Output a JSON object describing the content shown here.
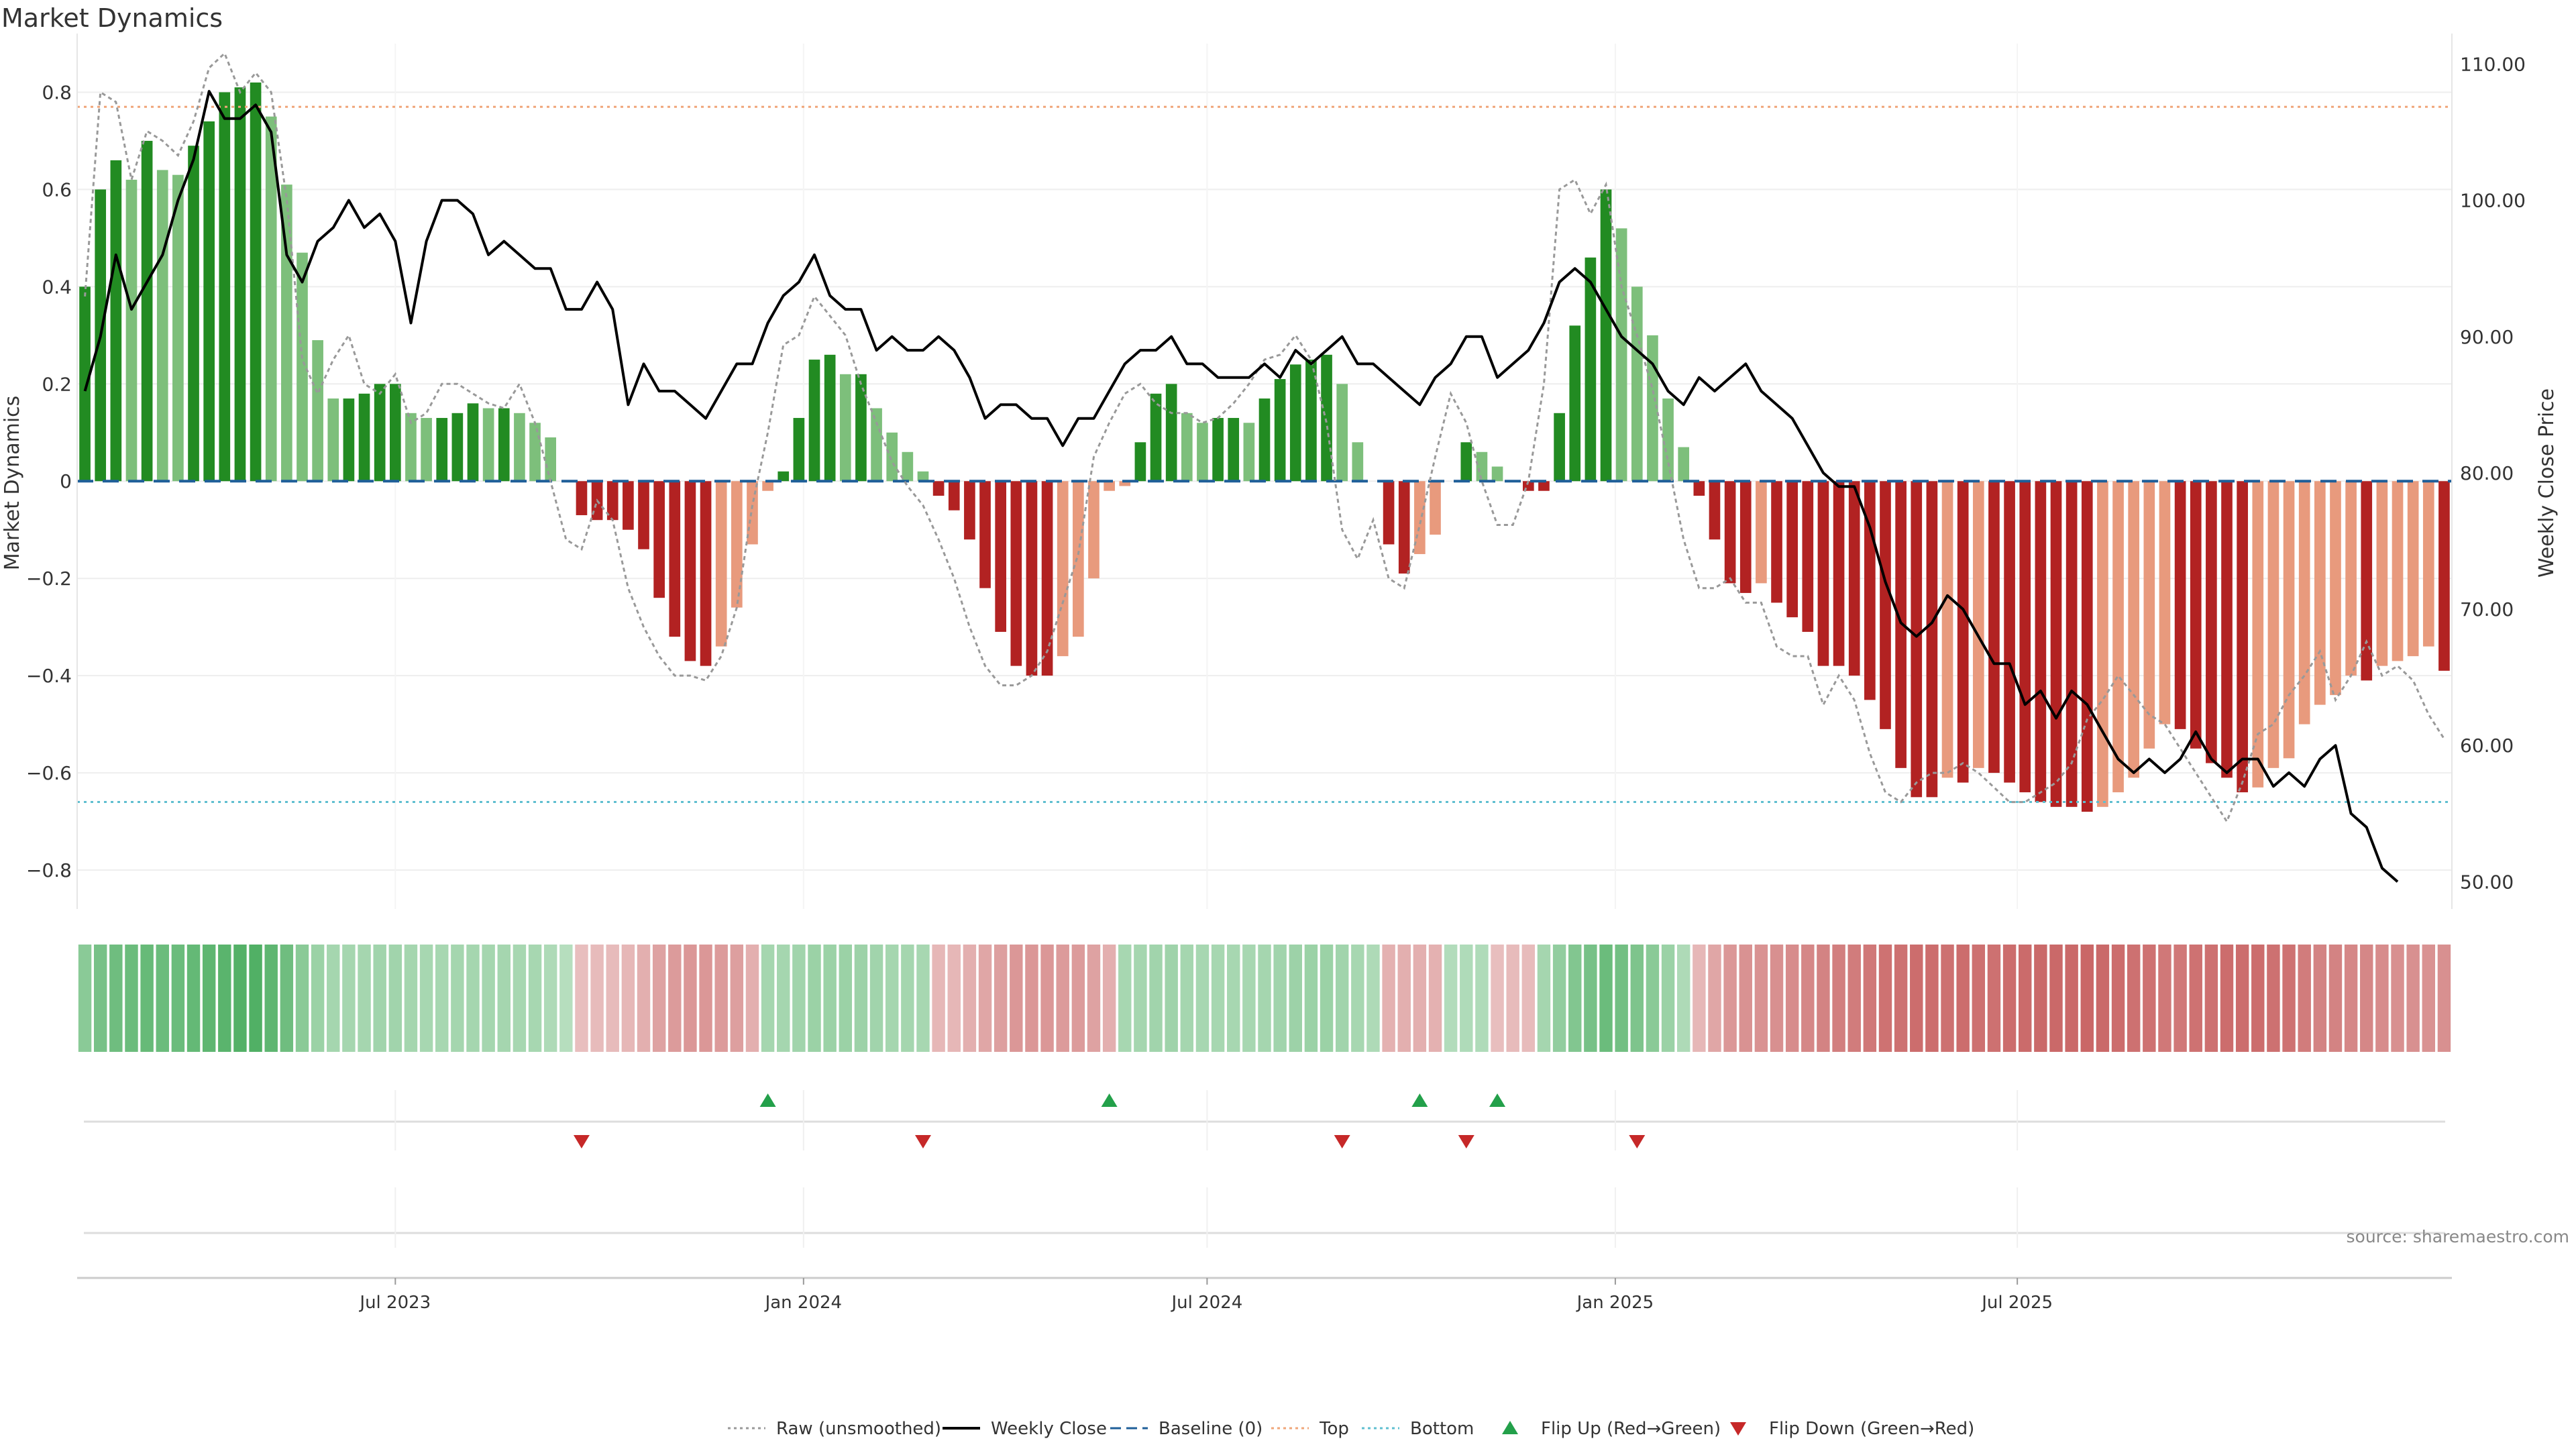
{
  "chart_data": {
    "type": "bar",
    "title": "Market Dynamics",
    "ylabel_left": "Market Dynamics",
    "ylabel_right": "Weekly Close Price",
    "ylim_left": [
      -0.88,
      0.9
    ],
    "ylim_right": [
      48.0,
      111.5
    ],
    "yticks_left": [
      {
        "v": 0.8,
        "label": "0.8"
      },
      {
        "v": 0.6,
        "label": "0.6"
      },
      {
        "v": 0.4,
        "label": "0.4"
      },
      {
        "v": 0.2,
        "label": "0.2"
      },
      {
        "v": 0.0,
        "label": "0"
      },
      {
        "v": -0.2,
        "label": "−0.2"
      },
      {
        "v": -0.4,
        "label": "−0.4"
      },
      {
        "v": -0.6,
        "label": "−0.6"
      },
      {
        "v": -0.8,
        "label": "−0.8"
      }
    ],
    "yticks_right": [
      {
        "v": 110,
        "label": "110.00"
      },
      {
        "v": 100,
        "label": "100.00"
      },
      {
        "v": 90,
        "label": "90.00"
      },
      {
        "v": 80,
        "label": "80.00"
      },
      {
        "v": 70,
        "label": "70.00"
      },
      {
        "v": 60,
        "label": "60.00"
      },
      {
        "v": 50,
        "label": "50.00"
      }
    ],
    "xticks": [
      {
        "index": 20,
        "label": "Jul 2023"
      },
      {
        "index": 46.3,
        "label": "Jan 2024"
      },
      {
        "index": 72.3,
        "label": "Jul 2024"
      },
      {
        "index": 98.6,
        "label": "Jan 2025"
      },
      {
        "index": 124.5,
        "label": "Jul 2025"
      }
    ],
    "top_line": 0.77,
    "bottom_line": -0.66,
    "baseline": 0,
    "series": [
      {
        "name": "Market Dynamics",
        "values": [
          0.4,
          0.6,
          0.66,
          0.62,
          0.7,
          0.64,
          0.63,
          0.69,
          0.74,
          0.8,
          0.81,
          0.82,
          0.75,
          0.61,
          0.47,
          0.29,
          0.17,
          0.17,
          0.18,
          0.2,
          0.2,
          0.14,
          0.13,
          0.13,
          0.14,
          0.16,
          0.15,
          0.15,
          0.14,
          0.12,
          0.09,
          0.0,
          -0.07,
          -0.08,
          -0.08,
          -0.1,
          -0.14,
          -0.24,
          -0.32,
          -0.37,
          -0.38,
          -0.34,
          -0.26,
          -0.13,
          -0.02,
          0.02,
          0.13,
          0.25,
          0.26,
          0.22,
          0.22,
          0.15,
          0.1,
          0.06,
          0.02,
          -0.03,
          -0.06,
          -0.12,
          -0.22,
          -0.31,
          -0.38,
          -0.4,
          -0.4,
          -0.36,
          -0.32,
          -0.2,
          -0.02,
          -0.01,
          0.08,
          0.18,
          0.2,
          0.14,
          0.12,
          0.13,
          0.13,
          0.12,
          0.17,
          0.21,
          0.24,
          0.25,
          0.26,
          0.2,
          0.08,
          0.0,
          -0.13,
          -0.19,
          -0.15,
          -0.11,
          0.0,
          0.08,
          0.06,
          0.03,
          0.0,
          -0.02,
          -0.02,
          0.14,
          0.32,
          0.46,
          0.6,
          0.52,
          0.4,
          0.3,
          0.17,
          0.07,
          -0.03,
          -0.12,
          -0.21,
          -0.23,
          -0.21,
          -0.25,
          -0.28,
          -0.31,
          -0.38,
          -0.38,
          -0.4,
          -0.45,
          -0.51,
          -0.59,
          -0.65,
          -0.65,
          -0.61,
          -0.62,
          -0.59,
          -0.6,
          -0.62,
          -0.64,
          -0.66,
          -0.67,
          -0.67,
          -0.68,
          -0.67,
          -0.64,
          -0.61,
          -0.55,
          -0.5,
          -0.51,
          -0.55,
          -0.58,
          -0.61,
          -0.64,
          -0.63,
          -0.59,
          -0.57,
          -0.5,
          -0.46,
          -0.44,
          -0.4,
          -0.41,
          -0.38,
          -0.37,
          -0.36,
          -0.34,
          -0.39
        ]
      },
      {
        "name": "Weekly Close",
        "values": [
          86,
          90,
          96,
          92,
          94,
          96,
          100,
          103,
          108,
          106,
          106,
          107,
          105,
          96,
          94,
          97,
          98,
          100,
          98,
          99,
          97,
          91,
          97,
          100,
          100,
          99,
          96,
          97,
          96,
          95,
          95,
          92,
          92,
          94,
          92,
          85,
          88,
          86,
          86,
          85,
          84,
          86,
          88,
          88,
          91,
          93,
          94,
          96,
          93,
          92,
          92,
          89,
          90,
          89,
          89,
          90,
          89,
          87,
          84,
          85,
          85,
          84,
          84,
          82,
          84,
          84,
          86,
          88,
          89,
          89,
          90,
          88,
          88,
          87,
          87,
          87,
          88,
          87,
          89,
          88,
          89,
          90,
          88,
          88,
          87,
          86,
          85,
          87,
          88,
          90,
          90,
          87,
          88,
          89,
          91,
          94,
          95,
          94,
          92,
          90,
          89,
          88,
          86,
          85,
          87,
          86,
          87,
          88,
          86,
          85,
          84,
          82,
          80,
          79,
          79,
          76,
          72,
          69,
          68,
          69,
          71,
          70,
          68,
          66,
          66,
          63,
          64,
          62,
          64,
          63,
          61,
          59,
          58,
          59,
          58,
          59,
          61,
          59,
          58,
          59,
          59,
          57,
          58,
          57,
          59,
          60,
          55,
          54,
          51,
          50
        ]
      },
      {
        "name": "Raw (unsmoothed)",
        "values": [
          0.38,
          0.8,
          0.78,
          0.62,
          0.72,
          0.7,
          0.67,
          0.74,
          0.85,
          0.88,
          0.8,
          0.84,
          0.8,
          0.58,
          0.25,
          0.18,
          0.25,
          0.3,
          0.2,
          0.18,
          0.22,
          0.12,
          0.14,
          0.2,
          0.2,
          0.18,
          0.16,
          0.15,
          0.2,
          0.12,
          0.0,
          -0.12,
          -0.14,
          -0.04,
          -0.08,
          -0.22,
          -0.3,
          -0.36,
          -0.4,
          -0.4,
          -0.41,
          -0.36,
          -0.26,
          -0.05,
          0.1,
          0.28,
          0.3,
          0.38,
          0.34,
          0.3,
          0.2,
          0.12,
          0.04,
          -0.01,
          -0.05,
          -0.12,
          -0.2,
          -0.3,
          -0.38,
          -0.42,
          -0.42,
          -0.4,
          -0.35,
          -0.25,
          -0.15,
          0.05,
          0.12,
          0.18,
          0.2,
          0.16,
          0.14,
          0.14,
          0.12,
          0.13,
          0.16,
          0.2,
          0.25,
          0.26,
          0.3,
          0.25,
          0.12,
          -0.1,
          -0.16,
          -0.08,
          -0.2,
          -0.22,
          -0.09,
          0.05,
          0.18,
          0.12,
          0.0,
          -0.09,
          -0.09,
          0.0,
          0.2,
          0.6,
          0.62,
          0.55,
          0.61,
          0.4,
          0.3,
          0.19,
          0.04,
          -0.12,
          -0.22,
          -0.22,
          -0.2,
          -0.25,
          -0.25,
          -0.34,
          -0.36,
          -0.36,
          -0.46,
          -0.4,
          -0.45,
          -0.56,
          -0.64,
          -0.66,
          -0.62,
          -0.6,
          -0.6,
          -0.58,
          -0.6,
          -0.63,
          -0.66,
          -0.66,
          -0.64,
          -0.62,
          -0.58,
          -0.49,
          -0.45,
          -0.4,
          -0.44,
          -0.48,
          -0.5,
          -0.55,
          -0.6,
          -0.65,
          -0.7,
          -0.62,
          -0.52,
          -0.5,
          -0.44,
          -0.4,
          -0.35,
          -0.45,
          -0.4,
          -0.33,
          -0.4,
          -0.38,
          -0.41,
          -0.48,
          -0.53
        ]
      }
    ],
    "strip": [
      0.45,
      0.55,
      0.6,
      0.62,
      0.65,
      0.62,
      0.62,
      0.66,
      0.7,
      0.72,
      0.75,
      0.76,
      0.7,
      0.6,
      0.45,
      0.35,
      0.3,
      0.3,
      0.3,
      0.32,
      0.32,
      0.3,
      0.28,
      0.28,
      0.3,
      0.3,
      0.3,
      0.3,
      0.28,
      0.28,
      0.25,
      0.2,
      -0.2,
      -0.22,
      -0.22,
      -0.25,
      -0.3,
      -0.38,
      -0.42,
      -0.45,
      -0.45,
      -0.42,
      -0.4,
      -0.3,
      0.3,
      0.3,
      0.32,
      0.35,
      0.35,
      0.35,
      0.34,
      0.32,
      0.3,
      0.3,
      0.28,
      -0.25,
      -0.25,
      -0.3,
      -0.35,
      -0.4,
      -0.45,
      -0.45,
      -0.45,
      -0.42,
      -0.42,
      -0.38,
      -0.3,
      0.28,
      0.3,
      0.32,
      0.33,
      0.3,
      0.28,
      0.28,
      0.28,
      0.28,
      0.3,
      0.32,
      0.34,
      0.35,
      0.35,
      0.32,
      0.28,
      0.25,
      -0.28,
      -0.3,
      -0.3,
      -0.28,
      0.22,
      0.24,
      0.23,
      -0.2,
      -0.22,
      -0.22,
      0.3,
      0.4,
      0.5,
      0.55,
      0.62,
      0.58,
      0.52,
      0.45,
      0.35,
      0.25,
      -0.25,
      -0.35,
      -0.45,
      -0.48,
      -0.48,
      -0.5,
      -0.52,
      -0.55,
      -0.58,
      -0.6,
      -0.62,
      -0.65,
      -0.68,
      -0.7,
      -0.72,
      -0.72,
      -0.7,
      -0.72,
      -0.7,
      -0.7,
      -0.72,
      -0.73,
      -0.74,
      -0.74,
      -0.74,
      -0.75,
      -0.74,
      -0.72,
      -0.7,
      -0.68,
      -0.65,
      -0.65,
      -0.68,
      -0.7,
      -0.72,
      -0.72,
      -0.72,
      -0.7,
      -0.68,
      -0.62,
      -0.58,
      -0.58,
      -0.55,
      -0.55,
      -0.52,
      -0.5,
      -0.5,
      -0.48,
      -0.5
    ],
    "flip_up": [
      44,
      66,
      86,
      91
    ],
    "flip_down": [
      32,
      54,
      81,
      89,
      100
    ],
    "source": "source: sharemaestro.com",
    "legend": [
      {
        "label": "Raw (unsmoothed)",
        "kind": "dotted",
        "color": "#999999"
      },
      {
        "label": "Weekly Close",
        "kind": "solid",
        "color": "#000000"
      },
      {
        "label": "Baseline (0)",
        "kind": "dashed",
        "color": "#1f5f99"
      },
      {
        "label": "Top",
        "kind": "dotted",
        "color": "#f0a67a"
      },
      {
        "label": "Bottom",
        "kind": "dotted",
        "color": "#5fbfd0"
      },
      {
        "label": "Flip Up (Red→Green)",
        "kind": "tri-up",
        "color": "#23a04a"
      },
      {
        "label": "Flip Down (Green→Red)",
        "kind": "tri-down",
        "color": "#c62828"
      }
    ],
    "colors": {
      "green_strong": "#228b22",
      "green_light": "#7dbf7b",
      "red_strong": "#b22222",
      "red_light": "#e89a7d",
      "top_line": "#f0a67a",
      "bottom_line": "#5fbfd0",
      "baseline": "#1f5f99",
      "raw": "#999999",
      "price": "#000000",
      "flip_up": "#23a04a",
      "flip_down": "#c62828"
    }
  }
}
